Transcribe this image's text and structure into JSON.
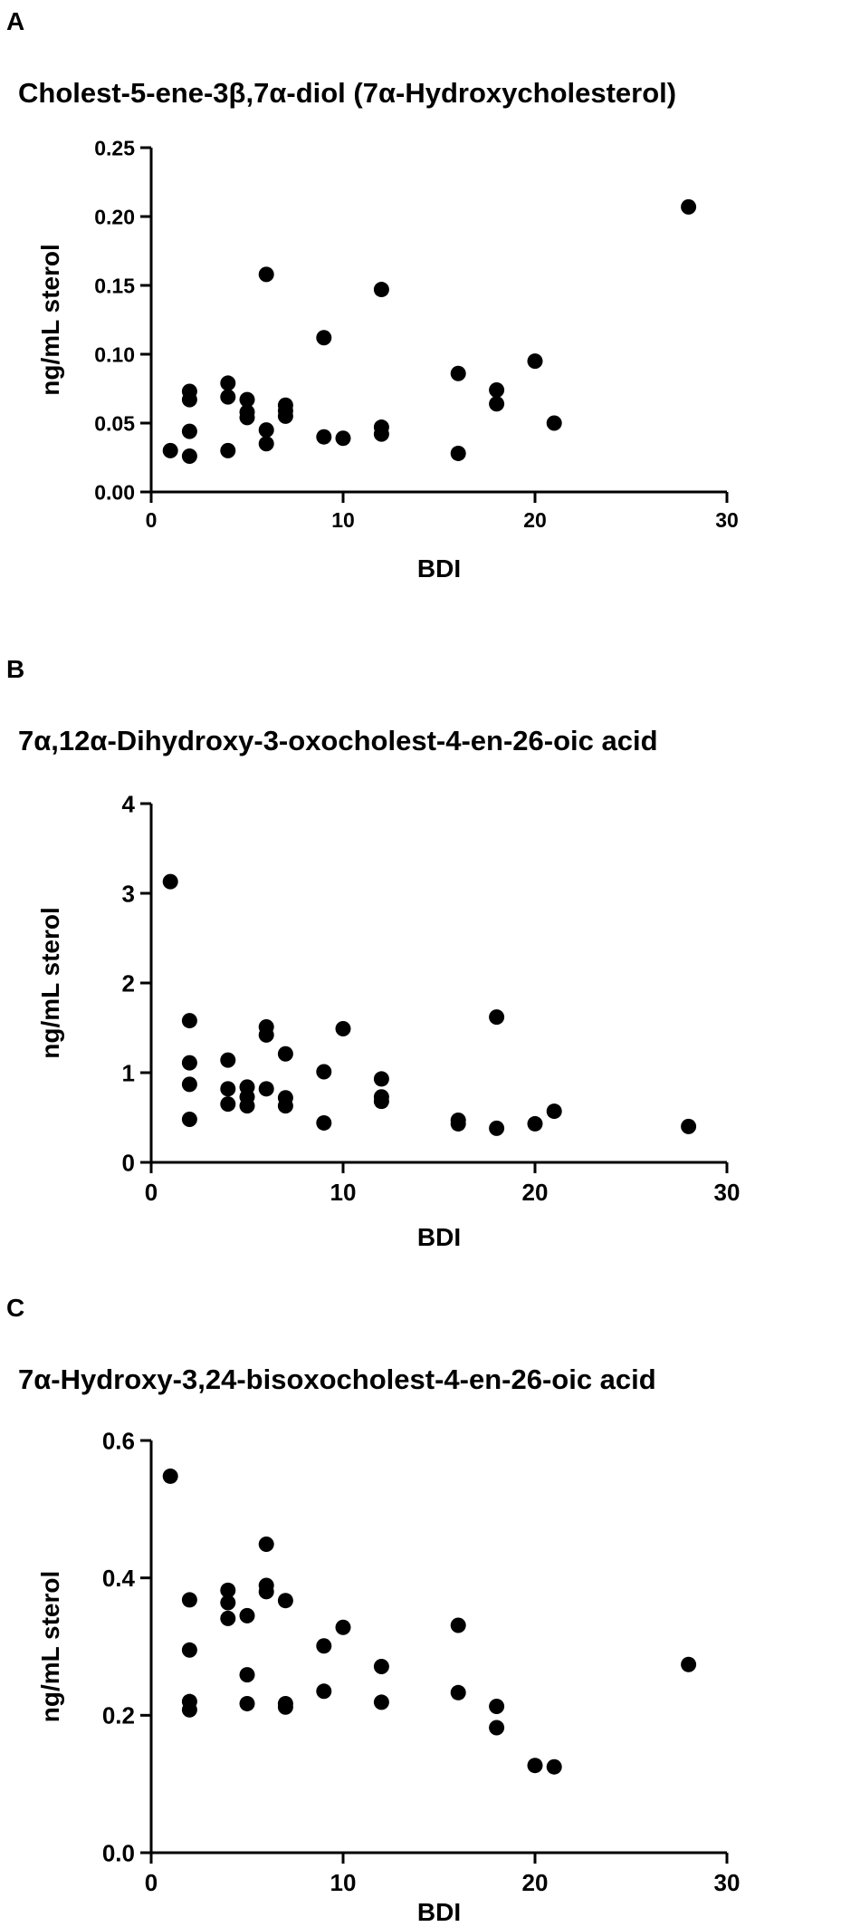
{
  "chart_data": [
    {
      "type": "scatter",
      "panel_label": "A",
      "title": "Cholest-5-ene-3β,7α-diol (7α-Hydroxycholesterol)",
      "xlabel": "BDI",
      "ylabel": "ng/mL sterol",
      "xlim": [
        0,
        30
      ],
      "ylim": [
        0,
        0.25
      ],
      "xticks": [
        "0",
        "10",
        "20",
        "30"
      ],
      "yticks": [
        "0.00",
        "0.05",
        "0.10",
        "0.15",
        "0.20",
        "0.25"
      ],
      "xtick_values": [
        0,
        10,
        20,
        30
      ],
      "ytick_values": [
        0,
        0.05,
        0.1,
        0.15,
        0.2,
        0.25
      ],
      "grid": false,
      "marker_color": "#000000",
      "points": [
        {
          "x": 1,
          "y": 0.03
        },
        {
          "x": 2,
          "y": 0.073
        },
        {
          "x": 2,
          "y": 0.067
        },
        {
          "x": 2,
          "y": 0.044
        },
        {
          "x": 2,
          "y": 0.026
        },
        {
          "x": 4,
          "y": 0.079
        },
        {
          "x": 4,
          "y": 0.069
        },
        {
          "x": 4,
          "y": 0.03
        },
        {
          "x": 5,
          "y": 0.067
        },
        {
          "x": 5,
          "y": 0.058
        },
        {
          "x": 5,
          "y": 0.054
        },
        {
          "x": 6,
          "y": 0.158
        },
        {
          "x": 6,
          "y": 0.045
        },
        {
          "x": 6,
          "y": 0.035
        },
        {
          "x": 7,
          "y": 0.063
        },
        {
          "x": 7,
          "y": 0.059
        },
        {
          "x": 7,
          "y": 0.055
        },
        {
          "x": 9,
          "y": 0.112
        },
        {
          "x": 9,
          "y": 0.04
        },
        {
          "x": 10,
          "y": 0.039
        },
        {
          "x": 12,
          "y": 0.147
        },
        {
          "x": 12,
          "y": 0.047
        },
        {
          "x": 12,
          "y": 0.042
        },
        {
          "x": 16,
          "y": 0.086
        },
        {
          "x": 16,
          "y": 0.028
        },
        {
          "x": 18,
          "y": 0.074
        },
        {
          "x": 18,
          "y": 0.064
        },
        {
          "x": 20,
          "y": 0.095
        },
        {
          "x": 21,
          "y": 0.05
        },
        {
          "x": 28,
          "y": 0.207
        }
      ]
    },
    {
      "type": "scatter",
      "panel_label": "B",
      "title": "7α,12α-Dihydroxy-3-oxocholest-4-en-26-oic acid",
      "xlabel": "BDI",
      "ylabel": "ng/mL sterol",
      "xlim": [
        0,
        30
      ],
      "ylim": [
        0,
        4
      ],
      "xticks": [
        "0",
        "10",
        "20",
        "30"
      ],
      "yticks": [
        "0",
        "1",
        "2",
        "3",
        "4"
      ],
      "xtick_values": [
        0,
        10,
        20,
        30
      ],
      "ytick_values": [
        0,
        1,
        2,
        3,
        4
      ],
      "grid": false,
      "marker_color": "#000000",
      "points": [
        {
          "x": 1,
          "y": 3.13
        },
        {
          "x": 2,
          "y": 1.58
        },
        {
          "x": 2,
          "y": 1.11
        },
        {
          "x": 2,
          "y": 0.87
        },
        {
          "x": 2,
          "y": 0.48
        },
        {
          "x": 4,
          "y": 1.14
        },
        {
          "x": 4,
          "y": 0.82
        },
        {
          "x": 4,
          "y": 0.65
        },
        {
          "x": 5,
          "y": 0.84
        },
        {
          "x": 5,
          "y": 0.73
        },
        {
          "x": 5,
          "y": 0.63
        },
        {
          "x": 6,
          "y": 1.51
        },
        {
          "x": 6,
          "y": 1.42
        },
        {
          "x": 6,
          "y": 0.82
        },
        {
          "x": 7,
          "y": 1.21
        },
        {
          "x": 7,
          "y": 0.72
        },
        {
          "x": 7,
          "y": 0.63
        },
        {
          "x": 9,
          "y": 1.01
        },
        {
          "x": 9,
          "y": 0.44
        },
        {
          "x": 10,
          "y": 1.49
        },
        {
          "x": 12,
          "y": 0.93
        },
        {
          "x": 12,
          "y": 0.73
        },
        {
          "x": 12,
          "y": 0.68
        },
        {
          "x": 16,
          "y": 0.47
        },
        {
          "x": 16,
          "y": 0.43
        },
        {
          "x": 18,
          "y": 1.62
        },
        {
          "x": 18,
          "y": 0.38
        },
        {
          "x": 20,
          "y": 0.43
        },
        {
          "x": 21,
          "y": 0.57
        },
        {
          "x": 28,
          "y": 0.4
        }
      ]
    },
    {
      "type": "scatter",
      "panel_label": "C",
      "title": "7α-Hydroxy-3,24-bisoxocholest-4-en-26-oic acid",
      "xlabel": "BDI",
      "ylabel": "ng/mL sterol",
      "xlim": [
        0,
        30
      ],
      "ylim": [
        0,
        0.6
      ],
      "xticks": [
        "0",
        "10",
        "20",
        "30"
      ],
      "yticks": [
        "0.0",
        "0.2",
        "0.4",
        "0.6"
      ],
      "xtick_values": [
        0,
        10,
        20,
        30
      ],
      "ytick_values": [
        0,
        0.2,
        0.4,
        0.6
      ],
      "grid": false,
      "marker_color": "#000000",
      "points": [
        {
          "x": 1,
          "y": 0.548
        },
        {
          "x": 2,
          "y": 0.368
        },
        {
          "x": 2,
          "y": 0.295
        },
        {
          "x": 2,
          "y": 0.22
        },
        {
          "x": 2,
          "y": 0.208
        },
        {
          "x": 4,
          "y": 0.382
        },
        {
          "x": 4,
          "y": 0.364
        },
        {
          "x": 4,
          "y": 0.341
        },
        {
          "x": 5,
          "y": 0.345
        },
        {
          "x": 5,
          "y": 0.259
        },
        {
          "x": 5,
          "y": 0.217
        },
        {
          "x": 6,
          "y": 0.449
        },
        {
          "x": 6,
          "y": 0.389
        },
        {
          "x": 6,
          "y": 0.38
        },
        {
          "x": 7,
          "y": 0.367
        },
        {
          "x": 7,
          "y": 0.217
        },
        {
          "x": 7,
          "y": 0.212
        },
        {
          "x": 9,
          "y": 0.301
        },
        {
          "x": 9,
          "y": 0.235
        },
        {
          "x": 10,
          "y": 0.328
        },
        {
          "x": 12,
          "y": 0.271
        },
        {
          "x": 12,
          "y": 0.219
        },
        {
          "x": 16,
          "y": 0.331
        },
        {
          "x": 16,
          "y": 0.233
        },
        {
          "x": 18,
          "y": 0.213
        },
        {
          "x": 18,
          "y": 0.182
        },
        {
          "x": 20,
          "y": 0.127
        },
        {
          "x": 21,
          "y": 0.125
        },
        {
          "x": 28,
          "y": 0.274
        }
      ]
    }
  ]
}
